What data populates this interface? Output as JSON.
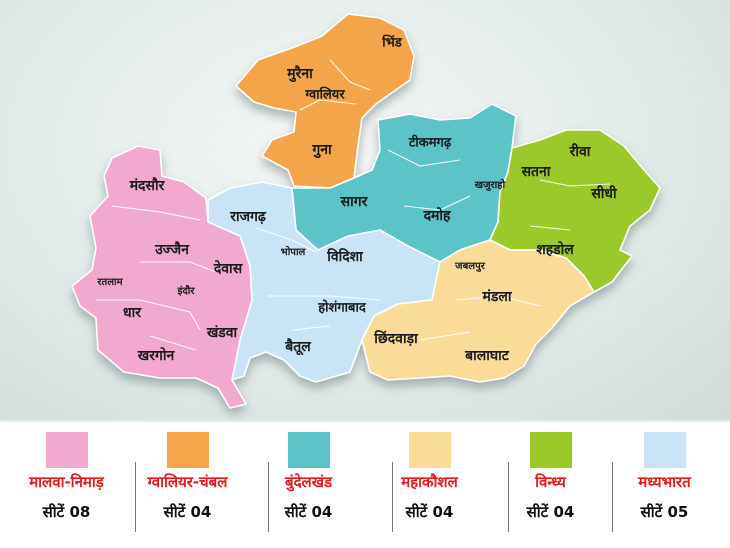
{
  "regions": [
    {
      "id": "malwa-nimad",
      "name": "मालवा-निमाड़",
      "seats": "सीटें 08",
      "color": "#f2a9cf"
    },
    {
      "id": "gwalior-chambal",
      "name": "ग्वालियर-चंबल",
      "seats": "सीटें 04",
      "color": "#f5a54a"
    },
    {
      "id": "bundelkhand",
      "name": "बुंदेलखंड",
      "seats": "सीटें 04",
      "color": "#5cc3c7"
    },
    {
      "id": "mahakoshal",
      "name": "महाकौशल",
      "seats": "सीटें 04",
      "color": "#f8dc98"
    },
    {
      "id": "vindhya",
      "name": "विन्ध्य",
      "seats": "सीटें 04",
      "color": "#9cc92a"
    },
    {
      "id": "madhyabharat",
      "name": "मध्यभारत",
      "seats": "सीटें 05",
      "color": "#c8e4f5"
    }
  ],
  "districts": {
    "bhind": "भिंड",
    "morena": "मुरैना",
    "gwalior": "ग्वालियर",
    "guna": "गुना",
    "tikamgarh": "टीकमगढ़",
    "sagar": "सागर",
    "damoh": "दमोह",
    "khajuraho": "खजुराहो",
    "satna": "सतना",
    "rewa": "रीवा",
    "sidhi": "सीधी",
    "shahdol": "शहडोल",
    "mandsaur": "मंदसौर",
    "ujjain": "उज्जैन",
    "ratlam": "रतलाम",
    "dewas": "देवास",
    "indore": "इंदौर",
    "dhar": "धार",
    "khandwa": "खंडवा",
    "khargone": "खरगोन",
    "rajgarh": "राजगढ़",
    "bhopal": "भोपाल",
    "vidisha": "विदिशा",
    "hoshangabad": "होशंगाबाद",
    "betul": "बैतूल",
    "jabalpur": "जबलपुर",
    "mandla": "मंडला",
    "chhindwara": "छिंदवाड़ा",
    "balaghat": "बालाघाट"
  }
}
